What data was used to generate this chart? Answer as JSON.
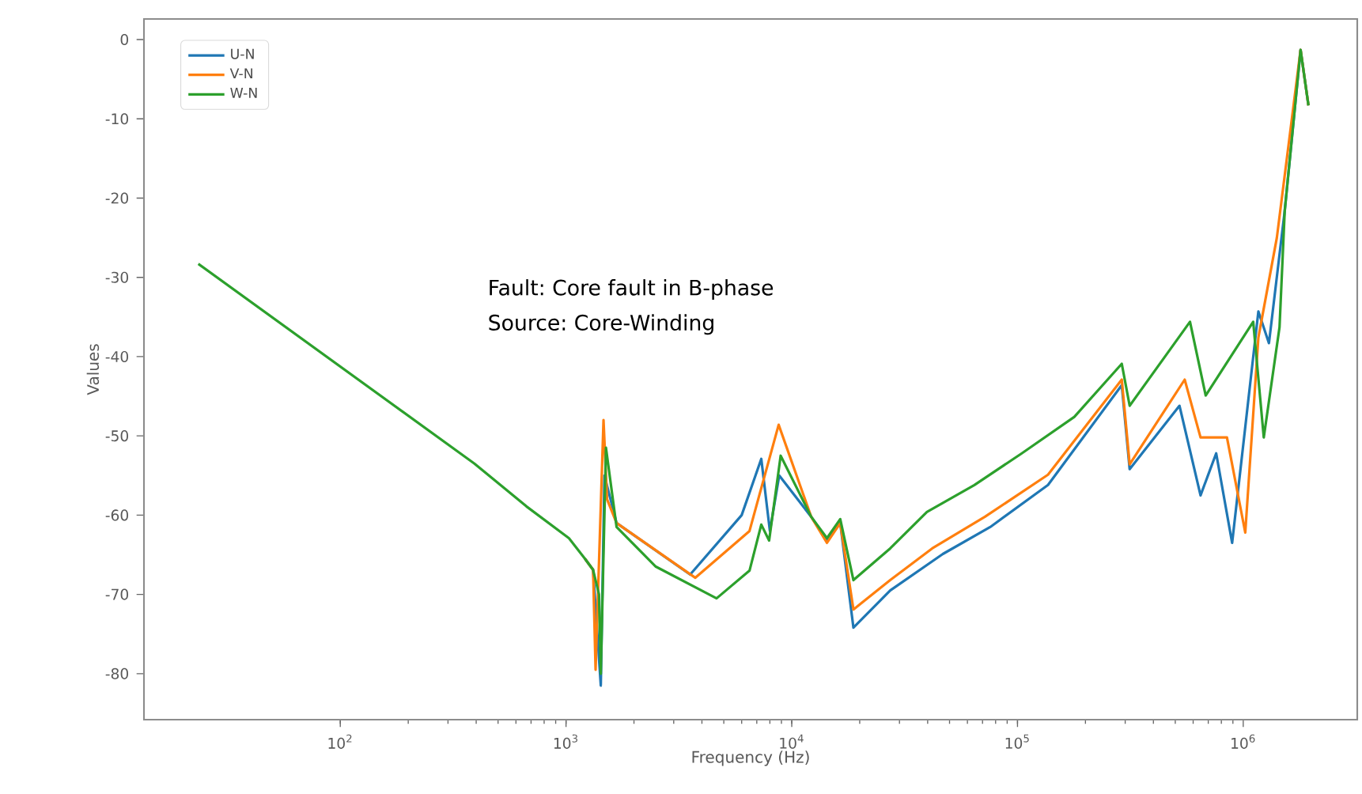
{
  "chart_data": {
    "type": "line",
    "xlabel": "Frequency (Hz)",
    "ylabel": "Values",
    "annotations": [
      "Fault: Core fault in B-phase",
      "Source: Core-Winding"
    ],
    "log": "x",
    "legend": "top left",
    "grid": false,
    "xlim": [
      13.5,
      3200000
    ],
    "ylim": [
      -85.8,
      2.6
    ],
    "xticks": [
      {
        "value": 100,
        "label": "10$^{2}$"
      },
      {
        "value": 1000,
        "label": "10$^{3}$"
      },
      {
        "value": 10000,
        "label": "10$^{4}$"
      },
      {
        "value": 100000,
        "label": "10$^{5}$"
      },
      {
        "value": 1000000,
        "label": "10$^{6}$"
      }
    ],
    "yticks": [
      0,
      -10,
      -20,
      -30,
      -40,
      -50,
      -60,
      -70,
      -80
    ],
    "series": [
      {
        "name": "U-N",
        "color": "#1f77b4",
        "x": [
          1213,
          1318,
          1426,
          1480,
          1675,
          3548,
          6000,
          7330,
          8000,
          8800,
          12190,
          14320,
          16400,
          18760,
          27300,
          46700,
          75700,
          136500,
          289700,
          314000,
          522000,
          647000,
          759000,
          893000,
          1167000,
          1300000,
          1527000,
          1795000,
          1945000
        ],
        "values": [
          -65.5,
          -66.9,
          -81.5,
          -55,
          -61,
          -67.5,
          -60,
          -52.9,
          -62,
          -55,
          -60.2,
          -63.2,
          -61,
          -74.2,
          -69.5,
          -64.9,
          -61.5,
          -56.2,
          -43.6,
          -54.2,
          -46.2,
          -57.5,
          -52.2,
          -63.5,
          -34.3,
          -38.3,
          -21.6,
          -1.3,
          -8.3
        ]
      },
      {
        "name": "V-N",
        "color": "#ff7f0e",
        "x": [
          1213,
          1318,
          1352,
          1466,
          1520,
          1675,
          3741,
          6500,
          8750,
          12190,
          14320,
          16400,
          18760,
          27300,
          41900,
          71800,
          136500,
          289700,
          314000,
          550500,
          647000,
          847000,
          1021000,
          1167000,
          1409000,
          1795000,
          1945000
        ],
        "values": [
          -65.5,
          -66.9,
          -79.5,
          -48,
          -58,
          -61,
          -67.9,
          -62,
          -48.6,
          -60.2,
          -63.5,
          -61,
          -71.9,
          -68.2,
          -64.2,
          -60.2,
          -54.9,
          -42.9,
          -53.6,
          -42.9,
          -50.2,
          -50.2,
          -62.2,
          -37.6,
          -25,
          -1.3,
          -8.3
        ]
      },
      {
        "name": "W-N",
        "color": "#2ca02c",
        "x": [
          23.5,
          393,
          668,
          1030,
          1213,
          1318,
          1400,
          1426,
          1503,
          1675,
          2500,
          4645,
          6500,
          7330,
          7940,
          8930,
          12190,
          14320,
          16400,
          18760,
          27300,
          39700,
          64400,
          104500,
          178600,
          289700,
          314000,
          581000,
          682000,
          1107000,
          1233000,
          1448000,
          1527000,
          1795000,
          1945000
        ],
        "values": [
          -28.3,
          -53.5,
          -58.9,
          -62.9,
          -65.5,
          -66.9,
          -70,
          -80,
          -51.5,
          -61.5,
          -66.5,
          -70.5,
          -67,
          -61.2,
          -63.2,
          -52.5,
          -60.2,
          -62.9,
          -60.5,
          -68.2,
          -64.2,
          -59.6,
          -56.2,
          -52.2,
          -47.6,
          -40.9,
          -46.2,
          -35.6,
          -44.9,
          -35.6,
          -50.2,
          -36.3,
          -21.6,
          -1.3,
          -8.3
        ]
      }
    ]
  }
}
